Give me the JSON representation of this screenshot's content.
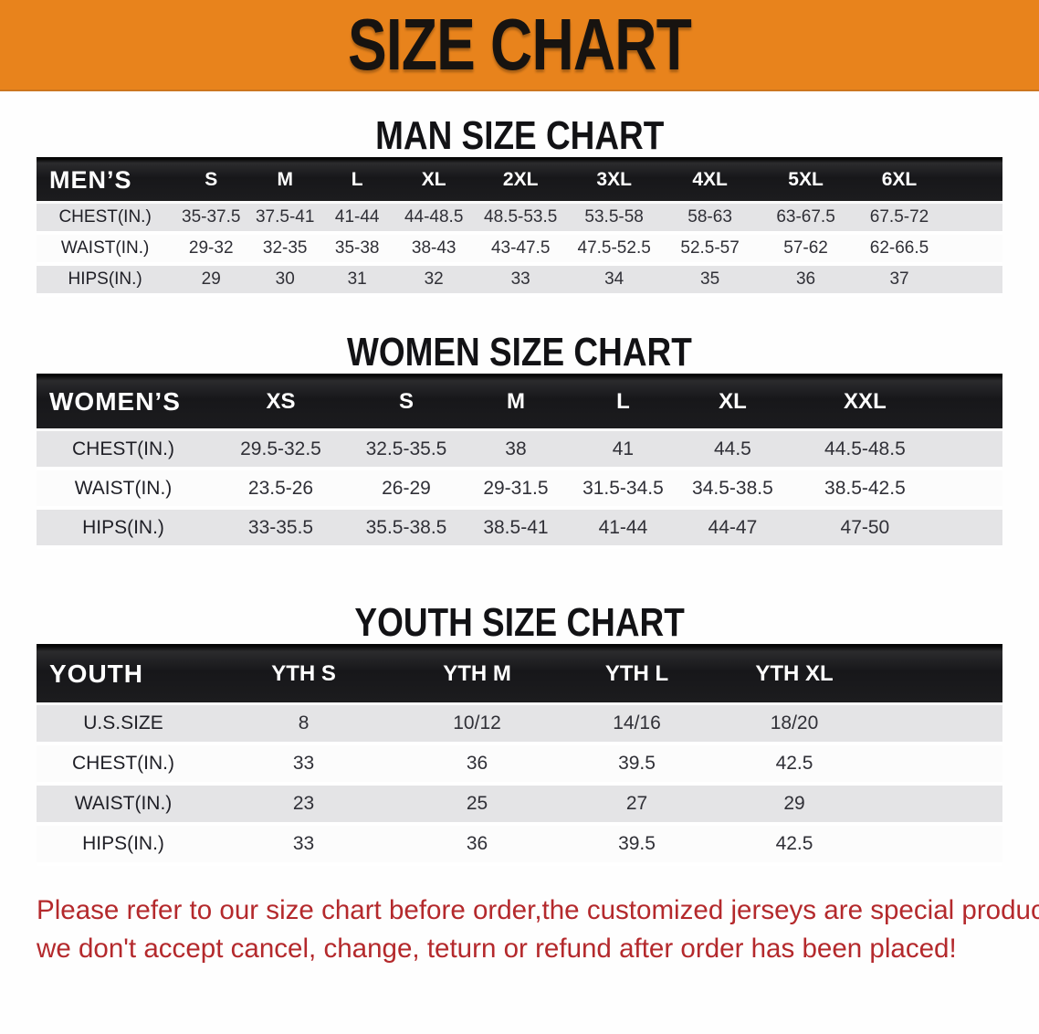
{
  "banner": {
    "title": "SIZE CHART"
  },
  "sections": [
    {
      "title": "MAN SIZE CHART",
      "group_label": "MEN’S",
      "sizes": [
        "S",
        "M",
        "L",
        "XL",
        "2XL",
        "3XL",
        "4XL",
        "5XL",
        "6XL"
      ],
      "rows": [
        {
          "label": "CHEST(IN.)",
          "values": [
            "35-37.5",
            "37.5-41",
            "41-44",
            "44-48.5",
            "48.5-53.5",
            "53.5-58",
            "58-63",
            "63-67.5",
            "67.5-72"
          ]
        },
        {
          "label": "WAIST(IN.)",
          "values": [
            "29-32",
            "32-35",
            "35-38",
            "38-43",
            "43-47.5",
            "47.5-52.5",
            "52.5-57",
            "57-62",
            "62-66.5"
          ]
        },
        {
          "label": "HIPS(IN.)",
          "values": [
            "29",
            "30",
            "31",
            "32",
            "33",
            "34",
            "35",
            "36",
            "37"
          ]
        }
      ]
    },
    {
      "title": "WOMEN SIZE CHART",
      "group_label": "WOMEN’S",
      "sizes": [
        "XS",
        "S",
        "M",
        "L",
        "XL",
        "XXL"
      ],
      "rows": [
        {
          "label": "CHEST(IN.)",
          "values": [
            "29.5-32.5",
            "32.5-35.5",
            "38",
            "41",
            "44.5",
            "44.5-48.5"
          ]
        },
        {
          "label": "WAIST(IN.)",
          "values": [
            "23.5-26",
            "26-29",
            "29-31.5",
            "31.5-34.5",
            "34.5-38.5",
            "38.5-42.5"
          ]
        },
        {
          "label": "HIPS(IN.)",
          "values": [
            "33-35.5",
            "35.5-38.5",
            "38.5-41",
            "41-44",
            "44-47",
            "47-50"
          ]
        }
      ]
    },
    {
      "title": "YOUTH SIZE CHART",
      "group_label": "YOUTH",
      "sizes": [
        "YTH S",
        "YTH M",
        "YTH L",
        "YTH XL"
      ],
      "rows": [
        {
          "label": "U.S.SIZE",
          "values": [
            "8",
            "10/12",
            "14/16",
            "18/20"
          ]
        },
        {
          "label": "CHEST(IN.)",
          "values": [
            "33",
            "36",
            "39.5",
            "42.5"
          ]
        },
        {
          "label": "WAIST(IN.)",
          "values": [
            "23",
            "25",
            "27",
            "29"
          ]
        },
        {
          "label": "HIPS(IN.)",
          "values": [
            "33",
            "36",
            "39.5",
            "42.5"
          ]
        }
      ]
    }
  ],
  "footnote": {
    "line1": "Please refer to our size chart before order,the customized jerseys are special products,",
    "line2": "we don't accept cancel, change, teturn or refund after order has been placed!"
  },
  "colors": {
    "banner_bg": "#E8831C",
    "banner_text": "#171310",
    "table_header_bg": "#1A1A1A",
    "row_alt_bg": "#E4E4E6",
    "footnote_red": "#B4292C"
  }
}
